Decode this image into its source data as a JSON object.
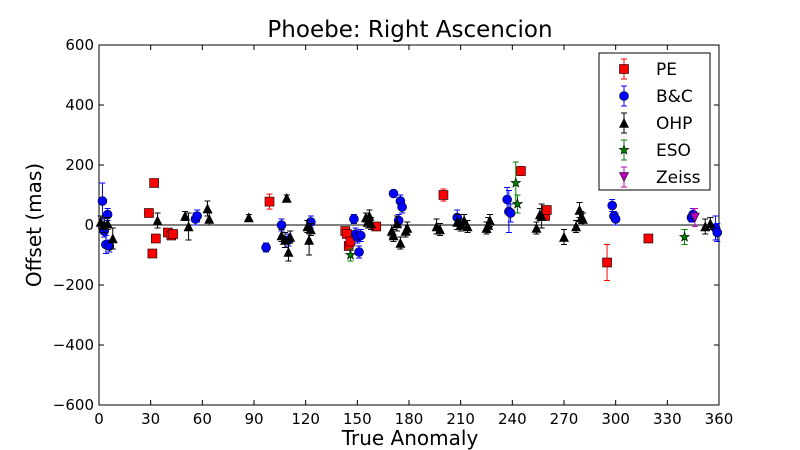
{
  "chart_data": {
    "type": "scatter",
    "title": "Phoebe: Right Ascencion",
    "xlabel": "True Anomaly",
    "ylabel": "Offset (mas)",
    "xlim": [
      0,
      360
    ],
    "ylim": [
      -600,
      600
    ],
    "xticks": [
      0,
      30,
      60,
      90,
      120,
      150,
      180,
      210,
      240,
      270,
      300,
      330,
      360
    ],
    "yticks": [
      -600,
      -400,
      -200,
      0,
      200,
      400,
      600
    ],
    "xtick_labels": [
      "0",
      "30",
      "60",
      "90",
      "120",
      "150",
      "180",
      "210",
      "240",
      "270",
      "300",
      "330",
      "360"
    ],
    "ytick_labels": [
      "−600",
      "−400",
      "−200",
      "0",
      "200",
      "400",
      "600"
    ],
    "zero_line": true,
    "grid": false,
    "legend_position": "top-right",
    "series": [
      {
        "name": "PE",
        "color": "#ff0000",
        "marker": "square",
        "points": [
          {
            "x": 29,
            "y": 40,
            "err": 0
          },
          {
            "x": 31,
            "y": -95,
            "err": 0
          },
          {
            "x": 32,
            "y": 140,
            "err": 0
          },
          {
            "x": 33,
            "y": -45,
            "err": 0
          },
          {
            "x": 40,
            "y": -25,
            "err": 0
          },
          {
            "x": 42,
            "y": -35,
            "err": 0
          },
          {
            "x": 43,
            "y": -30,
            "err": 0
          },
          {
            "x": 99,
            "y": 78,
            "err": 25
          },
          {
            "x": 143,
            "y": -20,
            "err": 0
          },
          {
            "x": 144,
            "y": -30,
            "err": 0
          },
          {
            "x": 145,
            "y": -70,
            "err": 0
          },
          {
            "x": 146,
            "y": -55,
            "err": 0
          },
          {
            "x": 161,
            "y": -5,
            "err": 10
          },
          {
            "x": 200,
            "y": 100,
            "err": 20
          },
          {
            "x": 245,
            "y": 180,
            "err": 15
          },
          {
            "x": 259,
            "y": 30,
            "err": 10
          },
          {
            "x": 260,
            "y": 50,
            "err": 10
          },
          {
            "x": 295,
            "y": -125,
            "err": 60
          },
          {
            "x": 319,
            "y": -45,
            "err": 0
          }
        ]
      },
      {
        "name": "B&C",
        "color": "#0000ff",
        "marker": "circle",
        "points": [
          {
            "x": 2,
            "y": 80,
            "err": 60
          },
          {
            "x": 3,
            "y": -20,
            "err": 20
          },
          {
            "x": 4,
            "y": -65,
            "err": 30
          },
          {
            "x": 5,
            "y": 35,
            "err": 20
          },
          {
            "x": 6,
            "y": -70,
            "err": 20
          },
          {
            "x": 56,
            "y": 20,
            "err": 20
          },
          {
            "x": 57,
            "y": 30,
            "err": 20
          },
          {
            "x": 97,
            "y": -75,
            "err": 15
          },
          {
            "x": 106,
            "y": 0,
            "err": 20
          },
          {
            "x": 110,
            "y": -50,
            "err": 20
          },
          {
            "x": 123,
            "y": 10,
            "err": 20
          },
          {
            "x": 148,
            "y": 20,
            "err": 15
          },
          {
            "x": 149,
            "y": -30,
            "err": 20
          },
          {
            "x": 150,
            "y": -40,
            "err": 20
          },
          {
            "x": 151,
            "y": -90,
            "err": 20
          },
          {
            "x": 152,
            "y": -35,
            "err": 20
          },
          {
            "x": 171,
            "y": 105,
            "err": 10
          },
          {
            "x": 174,
            "y": 15,
            "err": 20
          },
          {
            "x": 175,
            "y": 80,
            "err": 20
          },
          {
            "x": 176,
            "y": 60,
            "err": 20
          },
          {
            "x": 208,
            "y": 25,
            "err": 25
          },
          {
            "x": 237,
            "y": 85,
            "err": 40
          },
          {
            "x": 238,
            "y": 45,
            "err": 70
          },
          {
            "x": 239,
            "y": 40,
            "err": 30
          },
          {
            "x": 298,
            "y": 65,
            "err": 20
          },
          {
            "x": 299,
            "y": 30,
            "err": 15
          },
          {
            "x": 300,
            "y": 20,
            "err": 20
          },
          {
            "x": 344,
            "y": 25,
            "err": 15
          },
          {
            "x": 345,
            "y": 35,
            "err": 20
          },
          {
            "x": 358,
            "y": -10,
            "err": 40
          },
          {
            "x": 359,
            "y": -25,
            "err": 30
          }
        ]
      },
      {
        "name": "OHP",
        "color": "#000000",
        "marker": "triangle-up",
        "points": [
          {
            "x": 1,
            "y": 10,
            "err": 20
          },
          {
            "x": 3,
            "y": 0,
            "err": 25
          },
          {
            "x": 5,
            "y": 5,
            "err": 20
          },
          {
            "x": 8,
            "y": -45,
            "err": 35
          },
          {
            "x": 34,
            "y": 15,
            "err": 25
          },
          {
            "x": 50,
            "y": 30,
            "err": 15
          },
          {
            "x": 52,
            "y": -5,
            "err": 45
          },
          {
            "x": 63,
            "y": 55,
            "err": 25
          },
          {
            "x": 64,
            "y": 20,
            "err": 20
          },
          {
            "x": 87,
            "y": 25,
            "err": 10
          },
          {
            "x": 106,
            "y": -35,
            "err": 20
          },
          {
            "x": 108,
            "y": -50,
            "err": 25
          },
          {
            "x": 109,
            "y": 90,
            "err": 10
          },
          {
            "x": 110,
            "y": -90,
            "err": 30
          },
          {
            "x": 111,
            "y": -40,
            "err": 20
          },
          {
            "x": 121,
            "y": -5,
            "err": 20
          },
          {
            "x": 122,
            "y": -50,
            "err": 50
          },
          {
            "x": 123,
            "y": -15,
            "err": 20
          },
          {
            "x": 155,
            "y": 25,
            "err": 15
          },
          {
            "x": 156,
            "y": 10,
            "err": 20
          },
          {
            "x": 157,
            "y": 30,
            "err": 20
          },
          {
            "x": 158,
            "y": 5,
            "err": 20
          },
          {
            "x": 170,
            "y": -20,
            "err": 20
          },
          {
            "x": 171,
            "y": -35,
            "err": 20
          },
          {
            "x": 173,
            "y": 5,
            "err": 25
          },
          {
            "x": 175,
            "y": -60,
            "err": 20
          },
          {
            "x": 178,
            "y": -20,
            "err": 20
          },
          {
            "x": 179,
            "y": -10,
            "err": 20
          },
          {
            "x": 196,
            "y": -5,
            "err": 25
          },
          {
            "x": 198,
            "y": -15,
            "err": 20
          },
          {
            "x": 208,
            "y": 10,
            "err": 25
          },
          {
            "x": 210,
            "y": 0,
            "err": 20
          },
          {
            "x": 212,
            "y": 15,
            "err": 20
          },
          {
            "x": 214,
            "y": -5,
            "err": 20
          },
          {
            "x": 225,
            "y": -10,
            "err": 20
          },
          {
            "x": 226,
            "y": 0,
            "err": 25
          },
          {
            "x": 227,
            "y": 15,
            "err": 20
          },
          {
            "x": 254,
            "y": -10,
            "err": 20
          },
          {
            "x": 256,
            "y": 35,
            "err": 20
          },
          {
            "x": 257,
            "y": 30,
            "err": 40
          },
          {
            "x": 270,
            "y": -40,
            "err": 25
          },
          {
            "x": 277,
            "y": -5,
            "err": 20
          },
          {
            "x": 279,
            "y": 50,
            "err": 25
          },
          {
            "x": 280,
            "y": 25,
            "err": 20
          },
          {
            "x": 281,
            "y": 20,
            "err": 20
          },
          {
            "x": 352,
            "y": -5,
            "err": 25
          },
          {
            "x": 355,
            "y": 5,
            "err": 20
          }
        ]
      },
      {
        "name": "ESO",
        "color": "#008000",
        "marker": "star",
        "points": [
          {
            "x": 146,
            "y": -100,
            "err": 20
          },
          {
            "x": 242,
            "y": 140,
            "err": 70
          },
          {
            "x": 243,
            "y": 70,
            "err": 30
          },
          {
            "x": 340,
            "y": -40,
            "err": 25
          }
        ]
      },
      {
        "name": "Zeiss",
        "color": "#bf00bf",
        "marker": "triangle-down",
        "points": [
          {
            "x": 346,
            "y": 25,
            "err": 30
          }
        ]
      }
    ]
  }
}
